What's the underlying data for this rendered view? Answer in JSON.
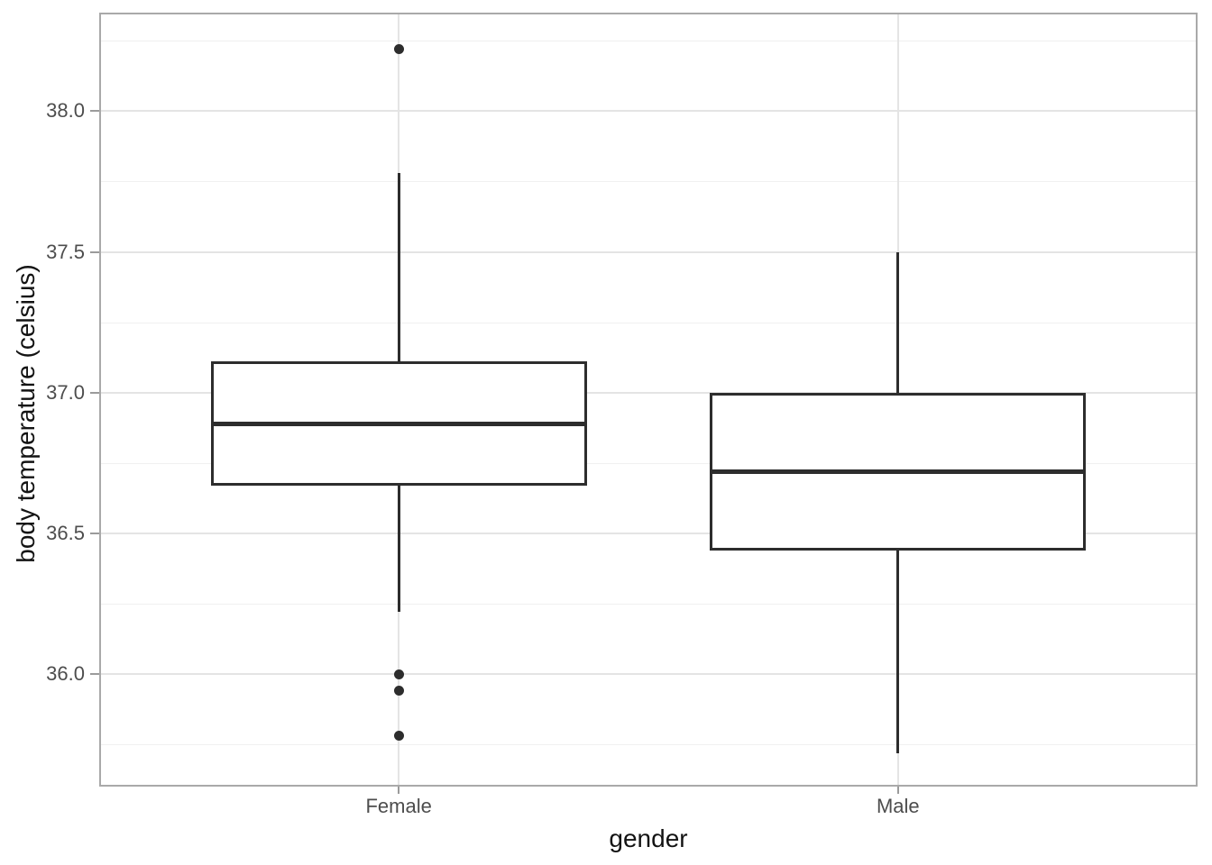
{
  "chart_data": {
    "type": "boxplot",
    "title": "",
    "xlabel": "gender",
    "ylabel": "body temperature (celsius)",
    "categories": [
      "Female",
      "Male"
    ],
    "series": [
      {
        "name": "Female",
        "lower_whisker": 36.22,
        "q1": 36.67,
        "median": 36.89,
        "q3": 37.11,
        "upper_whisker": 37.78,
        "outliers": [
          38.22,
          36.0,
          35.94,
          35.78
        ]
      },
      {
        "name": "Male",
        "lower_whisker": 35.72,
        "q1": 36.44,
        "median": 36.72,
        "q3": 37.0,
        "upper_whisker": 37.5,
        "outliers": []
      }
    ],
    "y_major_ticks": [
      36.0,
      36.5,
      37.0,
      37.5,
      38.0
    ],
    "y_tick_labels": [
      "36.0",
      "36.5",
      "37.0",
      "37.5",
      "38.0"
    ],
    "y_minor_ticks": [
      35.75,
      36.25,
      36.75,
      37.25,
      37.75,
      38.25
    ],
    "ylim": [
      35.6,
      38.35
    ],
    "grid": true,
    "legend": "none",
    "colors": {
      "box_stroke": "#2d2d2d",
      "outlier": "#2d2d2d",
      "grid_major": "#e4e4e4",
      "grid_minor": "#f0f0f0",
      "panel_border": "#a9a9a9",
      "tick_mark": "#9b9b9b",
      "axis_text": "#4d4d4d",
      "axis_title": "#131313",
      "background": "#ffffff"
    }
  }
}
